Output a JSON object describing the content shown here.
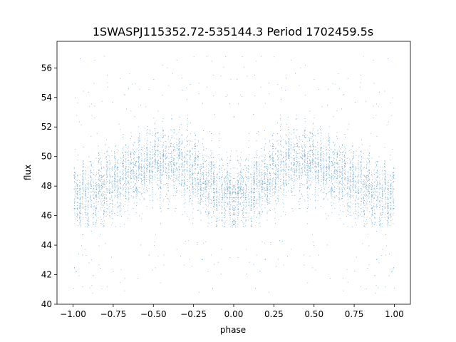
{
  "chart_data": {
    "type": "scatter",
    "title": "1SWASPJ115352.72-535144.3 Period 1702459.5s",
    "xlabel": "phase",
    "ylabel": "flux",
    "xlim": [
      -1.1,
      1.1
    ],
    "ylim": [
      40.0,
      57.8
    ],
    "xticks": [
      "−1.00",
      "−0.75",
      "−0.50",
      "−0.25",
      "0.00",
      "0.25",
      "0.50",
      "0.75",
      "1.00"
    ],
    "xtick_values": [
      -1.0,
      -0.75,
      -0.5,
      -0.25,
      0.0,
      0.25,
      0.5,
      0.75,
      1.0
    ],
    "yticks": [
      "40",
      "42",
      "44",
      "46",
      "48",
      "50",
      "52",
      "54",
      "56"
    ],
    "ytick_values": [
      40,
      42,
      44,
      46,
      48,
      50,
      52,
      54,
      56
    ],
    "grid": false,
    "marker_color": "#1f77b4",
    "series": [
      {
        "x_range": [
          -1.0,
          1.0
        ],
        "symmetric_about_phase_zero": true,
        "mean_trend": {
          "x": [
            -1.0,
            -0.9,
            -0.8,
            -0.75,
            -0.7,
            -0.6,
            -0.5,
            -0.4,
            -0.3,
            -0.25,
            -0.2,
            -0.1,
            0.0,
            0.1,
            0.2,
            0.25,
            0.3,
            0.4,
            0.5,
            0.6,
            0.7,
            0.75,
            0.8,
            0.9,
            1.0
          ],
          "y": [
            47.3,
            47.4,
            47.9,
            48.2,
            48.6,
            49.1,
            49.6,
            49.6,
            49.3,
            48.9,
            48.4,
            47.8,
            47.4,
            47.8,
            48.4,
            48.9,
            49.3,
            49.6,
            49.6,
            49.1,
            48.6,
            48.2,
            47.9,
            47.4,
            47.3
          ]
        },
        "core_spread": [
          45.2,
          53.0
        ],
        "outlier_range": [
          40.7,
          56.8
        ]
      }
    ]
  }
}
